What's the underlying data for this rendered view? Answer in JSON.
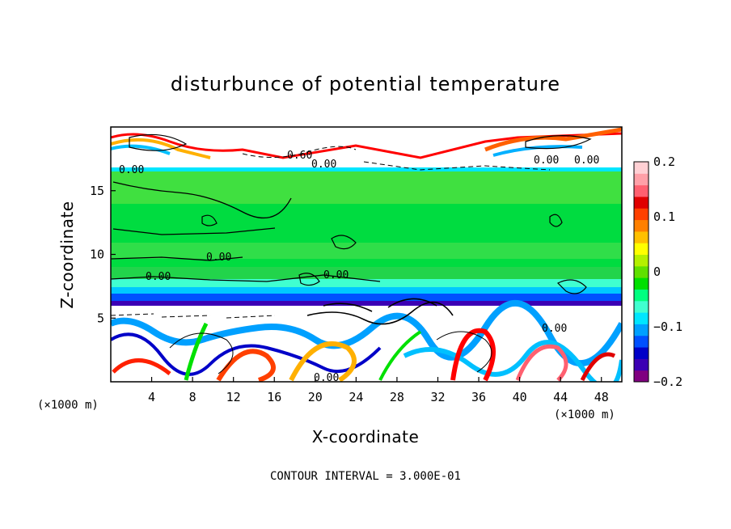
{
  "chart_data": {
    "type": "heatmap",
    "title": "disturbunce of potential temperature",
    "xlabel": "X-coordinate",
    "ylabel": "Z-coordinate",
    "x_unit": "(×1000 m)",
    "x_unit_right": "(×1000 m)",
    "xlim": [
      0,
      50
    ],
    "ylim": [
      0,
      20
    ],
    "x_ticks": [
      "4",
      "8",
      "12",
      "16",
      "20",
      "24",
      "28",
      "32",
      "36",
      "40",
      "44",
      "48"
    ],
    "y_ticks": [
      "5",
      "10",
      "15"
    ],
    "colorbar": {
      "range": [
        -0.2,
        0.2
      ],
      "tick_labels": [
        "0.2",
        "0.1",
        "0",
        "−0.1",
        "−0.2"
      ],
      "colors": [
        "#800080",
        "#3c00b4",
        "#0000c8",
        "#0050ff",
        "#00a0ff",
        "#00e6ff",
        "#40ffd0",
        "#00ff80",
        "#00e000",
        "#60e000",
        "#b4f000",
        "#ffff00",
        "#ffc000",
        "#ff8000",
        "#ff4000",
        "#e00000",
        "#ff6070",
        "#ffa0a8",
        "#ffd0d4"
      ]
    },
    "contour_labels": [
      "0.00",
      "0.60",
      "0.00",
      "0.00",
      "0.00",
      "0.00",
      "0.00",
      "0.00",
      "0.00",
      "0.00"
    ],
    "footer": "CONTOUR INTERVAL = 3.000E-01",
    "grid": false
  }
}
